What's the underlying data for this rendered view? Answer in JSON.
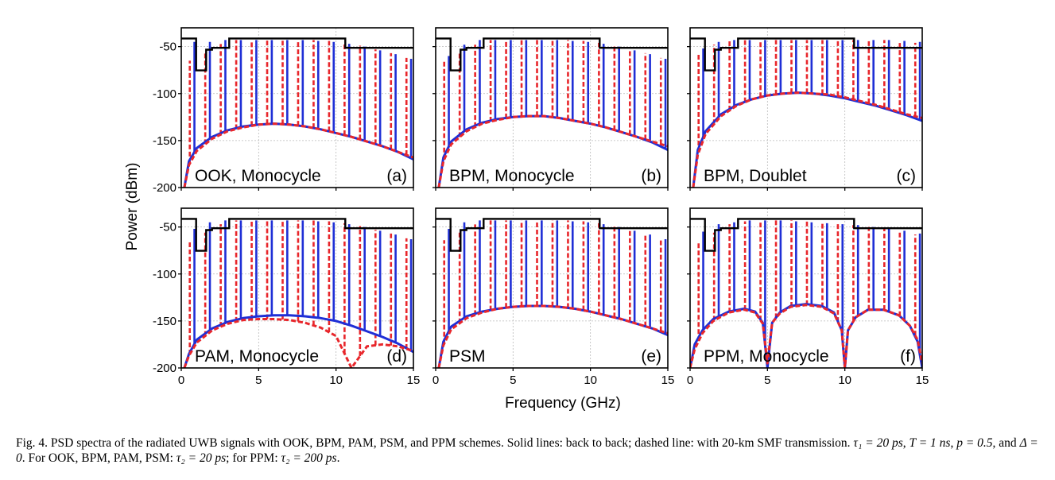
{
  "figure": {
    "ylabel": "Power (dBm)",
    "xlabel": "Frequency (GHz)",
    "colors": {
      "b2b": "#1f2fd6",
      "smf": "#e8262b",
      "mask": "#000000",
      "grid": "#b9b9b9"
    }
  },
  "caption": {
    "p1": "Fig. 4.  PSD spectra of the radiated UWB signals with OOK, BPM, PAM, PSM, and PPM schemes. Solid lines: back to back; dashed line: with 20-km SMF transmission. ",
    "tau1": "τ₁ = 20 ps",
    "T": "T = 1 ns",
    "p": "p = 0.5",
    "delta": "Δ = 0",
    "p2": "For OOK, BPM, PAM, PSM: ",
    "tau2a": "τ₂ = 20 ps",
    "p3": "for PPM: ",
    "tau2b": "τ₂ = 200 ps"
  },
  "chart_data": [
    {
      "type": "line",
      "panel": "(a)",
      "label": "OOK, Monocycle",
      "xlim": [
        0,
        15
      ],
      "ylim": [
        -200,
        -30
      ],
      "xticks": [
        "0",
        "5",
        "10",
        "15"
      ],
      "yticks": [
        "-50",
        "-100",
        "-150",
        "-200"
      ],
      "series": [
        {
          "style": "solid",
          "x": [
            0.2,
            0.5,
            1,
            2,
            3,
            4,
            5,
            6,
            7,
            8,
            9,
            10,
            11,
            12,
            13,
            14,
            15
          ],
          "y": [
            -200,
            -172,
            -158,
            -146,
            -139,
            -135,
            -133,
            -132,
            -133,
            -135,
            -138,
            -142,
            -146,
            -151,
            -156,
            -162,
            -170
          ]
        },
        {
          "style": "dashed",
          "x": [
            0.2,
            0.5,
            1,
            2,
            3,
            4,
            5,
            6,
            7,
            8,
            9,
            10,
            11,
            12,
            13,
            14,
            15
          ],
          "y": [
            -200,
            -176,
            -161,
            -148,
            -140,
            -136,
            -133,
            -132,
            -133,
            -135,
            -138,
            -142,
            -146,
            -151,
            -156,
            -162,
            -168
          ]
        }
      ],
      "lines_b2b_peak_dbm": [
        -45,
        -45,
        -43,
        -43,
        -43,
        -43,
        -43,
        -43,
        -44,
        -45,
        -47,
        -50,
        -54,
        -58,
        -63,
        -68
      ],
      "lines_smf_peak_dbm": [
        -65,
        -56,
        -47,
        -43,
        -43,
        -43,
        -43,
        -43,
        -43,
        -44,
        -46,
        -49,
        -53,
        -57,
        -62,
        -67
      ]
    },
    {
      "type": "line",
      "panel": "(b)",
      "label": "BPM, Monocycle",
      "xlim": [
        0,
        15
      ],
      "ylim": [
        -200,
        -30
      ],
      "xticks": [
        "0",
        "5",
        "10",
        "15"
      ],
      "yticks": [
        "-50",
        "-100",
        "-150",
        "-200"
      ],
      "series": [
        {
          "style": "solid",
          "x": [
            0.2,
            0.5,
            1,
            2,
            3,
            4,
            5,
            6,
            7,
            8,
            9,
            10,
            11,
            12,
            13,
            14,
            15
          ],
          "y": [
            -200,
            -168,
            -151,
            -138,
            -131,
            -127,
            -125,
            -124,
            -124,
            -126,
            -129,
            -132,
            -136,
            -141,
            -146,
            -152,
            -160
          ]
        },
        {
          "style": "dashed",
          "x": [
            0.2,
            0.5,
            1,
            2,
            3,
            4,
            5,
            6,
            7,
            8,
            9,
            10,
            11,
            12,
            13,
            14,
            15
          ],
          "y": [
            -200,
            -172,
            -154,
            -140,
            -132,
            -128,
            -125,
            -124,
            -124,
            -126,
            -129,
            -132,
            -136,
            -141,
            -146,
            -151,
            -156
          ]
        }
      ],
      "lines_b2b_peak_dbm": [
        -60,
        -48,
        -43,
        -43,
        -43,
        -43,
        -43,
        -43,
        -44,
        -45,
        -47,
        -50,
        -54,
        -58,
        -63,
        -68
      ],
      "lines_smf_peak_dbm": [
        -66,
        -57,
        -48,
        -43,
        -43,
        -43,
        -43,
        -43,
        -43,
        -44,
        -46,
        -49,
        -53,
        -57,
        -62,
        -67
      ]
    },
    {
      "type": "line",
      "panel": "(c)",
      "label": "BPM, Doublet",
      "xlim": [
        0,
        15
      ],
      "ylim": [
        -200,
        -30
      ],
      "xticks": [
        "0",
        "5",
        "10",
        "15"
      ],
      "yticks": [
        "-50",
        "-100",
        "-150",
        "-200"
      ],
      "series": [
        {
          "style": "solid",
          "x": [
            0.2,
            0.5,
            1,
            2,
            3,
            4,
            5,
            6,
            7,
            8,
            9,
            10,
            11,
            12,
            13,
            14,
            15
          ],
          "y": [
            -200,
            -160,
            -140,
            -122,
            -112,
            -106,
            -102,
            -100,
            -99,
            -100,
            -102,
            -105,
            -109,
            -113,
            -118,
            -123,
            -129
          ]
        },
        {
          "style": "dashed",
          "x": [
            0.2,
            0.5,
            1,
            2,
            3,
            4,
            5,
            6,
            7,
            8,
            9,
            10,
            11,
            12,
            13,
            14,
            15
          ],
          "y": [
            -200,
            -165,
            -143,
            -124,
            -113,
            -106,
            -102,
            -100,
            -99,
            -100,
            -101,
            -104,
            -108,
            -112,
            -117,
            -122,
            -126
          ]
        }
      ],
      "lines_b2b_peak_dbm": [
        -52,
        -45,
        -43,
        -43,
        -43,
        -43,
        -43,
        -43,
        -43,
        -43,
        -43,
        -43,
        -43,
        -44,
        -45,
        -47
      ],
      "lines_smf_peak_dbm": [
        -58,
        -48,
        -43,
        -43,
        -43,
        -43,
        -43,
        -43,
        -43,
        -43,
        -43,
        -43,
        -43,
        -44,
        -46,
        -48
      ]
    },
    {
      "type": "line",
      "panel": "(d)",
      "label": "PAM, Monocycle",
      "xlim": [
        0,
        15
      ],
      "ylim": [
        -200,
        -30
      ],
      "xticks": [
        "0",
        "5",
        "10",
        "15"
      ],
      "yticks": [
        "-50",
        "-100",
        "-150",
        "-200"
      ],
      "series": [
        {
          "style": "solid",
          "x": [
            0.2,
            0.5,
            1,
            2,
            3,
            4,
            5,
            6,
            7,
            8,
            9,
            10,
            11,
            12,
            13,
            14,
            15
          ],
          "y": [
            -200,
            -185,
            -170,
            -158,
            -151,
            -147,
            -145,
            -144,
            -144,
            -145,
            -147,
            -150,
            -155,
            -161,
            -167,
            -174,
            -183
          ]
        },
        {
          "style": "dashed",
          "x": [
            0.2,
            0.5,
            1,
            2,
            3,
            4,
            5,
            6,
            7,
            8,
            9,
            10,
            11,
            12,
            13,
            14,
            15
          ],
          "y": [
            -200,
            -187,
            -173,
            -160,
            -153,
            -149,
            -148,
            -148,
            -149,
            -152,
            -157,
            -166,
            -200,
            -177,
            -175,
            -177,
            -182
          ]
        }
      ],
      "lines_b2b_peak_dbm": [
        -52,
        -45,
        -43,
        -43,
        -43,
        -43,
        -43,
        -43,
        -44,
        -45,
        -47,
        -50,
        -54,
        -58,
        -63,
        -68
      ],
      "lines_smf_peak_dbm": [
        -64,
        -56,
        -47,
        -43,
        -43,
        -43,
        -43,
        -43,
        -43,
        -44,
        -46,
        -49,
        -53,
        -57,
        -62,
        -67
      ]
    },
    {
      "type": "line",
      "panel": "(e)",
      "label": "PSM",
      "xlim": [
        0,
        15
      ],
      "ylim": [
        -200,
        -30
      ],
      "xticks": [
        "0",
        "5",
        "10",
        "15"
      ],
      "yticks": [
        "-50",
        "-100",
        "-150",
        "-200"
      ],
      "series": [
        {
          "style": "solid",
          "x": [
            0.2,
            0.5,
            1,
            2,
            3,
            4,
            5,
            6,
            7,
            8,
            9,
            10,
            11,
            12,
            13,
            14,
            15
          ],
          "y": [
            -200,
            -172,
            -156,
            -145,
            -140,
            -137,
            -135,
            -134,
            -134,
            -135,
            -137,
            -140,
            -144,
            -148,
            -153,
            -158,
            -165
          ]
        },
        {
          "style": "dashed",
          "x": [
            0.2,
            0.5,
            1,
            2,
            3,
            4,
            5,
            6,
            7,
            8,
            9,
            10,
            11,
            12,
            13,
            14,
            15
          ],
          "y": [
            -200,
            -176,
            -159,
            -147,
            -141,
            -137,
            -135,
            -134,
            -134,
            -135,
            -137,
            -140,
            -144,
            -148,
            -153,
            -158,
            -163
          ]
        }
      ],
      "lines_b2b_peak_dbm": [
        -52,
        -45,
        -43,
        -43,
        -43,
        -43,
        -43,
        -43,
        -44,
        -45,
        -47,
        -50,
        -54,
        -58,
        -63,
        -68
      ],
      "lines_smf_peak_dbm": [
        -64,
        -56,
        -47,
        -43,
        -43,
        -43,
        -43,
        -43,
        -43,
        -44,
        -46,
        -49,
        -53,
        -57,
        -62,
        -67
      ]
    },
    {
      "type": "line",
      "panel": "(f)",
      "label": "PPM, Monocycle",
      "xlim": [
        0,
        15
      ],
      "ylim": [
        -200,
        -30
      ],
      "xticks": [
        "0",
        "5",
        "10",
        "15"
      ],
      "yticks": [
        "-50",
        "-100",
        "-150",
        "-200"
      ],
      "series": [
        {
          "style": "solid",
          "x": [
            0,
            0.3,
            0.8,
            1.5,
            2.5,
            3.5,
            4.2,
            4.7,
            5,
            5.3,
            5.8,
            6.5,
            7.5,
            8.5,
            9.3,
            9.8,
            10,
            10.2,
            10.7,
            11.5,
            12.5,
            13.5,
            14.2,
            14.7,
            15
          ],
          "y": [
            -200,
            -175,
            -160,
            -148,
            -140,
            -137,
            -140,
            -152,
            -200,
            -152,
            -141,
            -134,
            -132,
            -134,
            -141,
            -160,
            -200,
            -160,
            -146,
            -138,
            -138,
            -144,
            -155,
            -172,
            -200
          ]
        },
        {
          "style": "dashed",
          "x": [
            0,
            0.3,
            0.8,
            1.5,
            2.5,
            3.5,
            4.2,
            4.7,
            5,
            5.3,
            5.8,
            6.5,
            7.5,
            8.5,
            9.3,
            9.8,
            10,
            10.2,
            10.7,
            11.5,
            12.5,
            13.5,
            14.2,
            14.7,
            15
          ],
          "y": [
            -200,
            -180,
            -163,
            -150,
            -141,
            -138,
            -141,
            -153,
            -195,
            -152,
            -142,
            -135,
            -133,
            -135,
            -142,
            -160,
            -200,
            -160,
            -146,
            -138,
            -138,
            -144,
            -155,
            -170,
            -195
          ]
        }
      ],
      "lines_b2b_peak_dbm": [
        -55,
        -47,
        -45,
        -43,
        -43,
        -43,
        -44,
        -45,
        -46,
        -47,
        -48,
        -50,
        -52,
        -54,
        -57,
        -60
      ],
      "lines_smf_peak_dbm": [
        -66,
        -56,
        -47,
        -44,
        -43,
        -43,
        -43,
        -44,
        -45,
        -46,
        -48,
        -50,
        -52,
        -55,
        -58,
        -61
      ]
    }
  ],
  "mask": {
    "x": [
      0,
      0.96,
      0.96,
      1.61,
      1.61,
      1.99,
      1.99,
      3.1,
      3.1,
      10.6,
      10.6,
      15
    ],
    "y": [
      -41.3,
      -41.3,
      -75.3,
      -75.3,
      -53.3,
      -53.3,
      -51.3,
      -51.3,
      -41.3,
      -41.3,
      -51.3,
      -51.3
    ]
  }
}
